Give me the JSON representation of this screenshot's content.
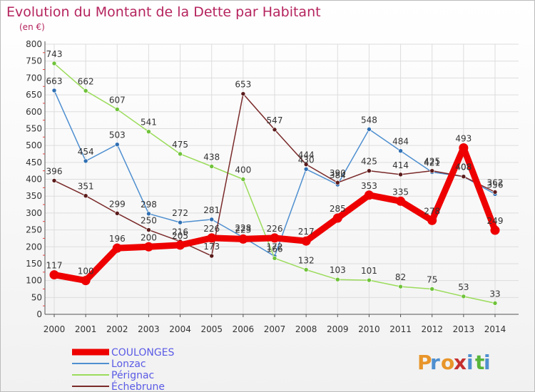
{
  "title": "Evolution du Montant de la Dette par Habitant",
  "subtitle": "(en €)",
  "brand": [
    "P",
    "r",
    "o",
    "x",
    "i",
    "t",
    "i"
  ],
  "colors": {
    "title": "#b5245e",
    "grid": "#dddddd",
    "axis": "#555555",
    "legend_text": "#5a5ae6",
    "brand": [
      "#e8952a",
      "#4e8fd0",
      "#e8952a",
      "#c52f2f",
      "#4e8fd0",
      "#57b53b",
      "#4e8fd0"
    ]
  },
  "chart_data": {
    "type": "line",
    "x": [
      2000,
      2001,
      2002,
      2003,
      2004,
      2005,
      2006,
      2007,
      2008,
      2009,
      2010,
      2011,
      2012,
      2013,
      2014
    ],
    "ylim": [
      0,
      800
    ],
    "yticks": [
      0,
      50,
      100,
      150,
      200,
      250,
      300,
      350,
      400,
      450,
      500,
      550,
      600,
      650,
      700,
      750,
      800
    ],
    "grid": true,
    "legend_position": "bottom-left",
    "series": [
      {
        "name": "Lonzac",
        "color": "#4e8fd0",
        "marker": "#2f6fb3",
        "values": [
          663,
          454,
          503,
          298,
          272,
          281,
          228,
          172,
          430,
          384,
          548,
          484,
          421,
          408,
          356
        ]
      },
      {
        "name": "Pérignac",
        "color": "#9bdc5b",
        "marker": "#6fc23a",
        "values": [
          743,
          662,
          607,
          541,
          475,
          438,
          400,
          166,
          132,
          103,
          101,
          82,
          75,
          53,
          33
        ]
      },
      {
        "name": "Échebrune",
        "color": "#7a2a2a",
        "marker": "#5a1a1a",
        "values": [
          396,
          351,
          299,
          250,
          216,
          173,
          653,
          547,
          444,
          390,
          425,
          414,
          425,
          408,
          362
        ]
      },
      {
        "name": "COULONGES",
        "color": "#ee0000",
        "marker": "#ee0000",
        "values": [
          117,
          100,
          196,
          200,
          205,
          226,
          223,
          226,
          217,
          285,
          353,
          335,
          278,
          493,
          249
        ]
      }
    ]
  }
}
